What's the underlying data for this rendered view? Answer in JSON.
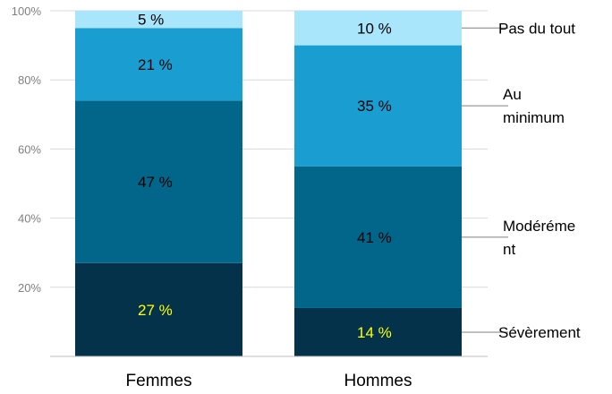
{
  "chart_data": {
    "type": "bar",
    "stacked": true,
    "categories": [
      "Femmes",
      "Hommes"
    ],
    "series": [
      {
        "name": "Sévèrement",
        "values": [
          27,
          14
        ],
        "labels": [
          "27 %",
          "14 %"
        ],
        "color": "#03324a",
        "label_color": "#ffff00"
      },
      {
        "name": "Modérément",
        "values": [
          47,
          41
        ],
        "labels": [
          "47 %",
          "41 %"
        ],
        "color": "#02668b",
        "label_color": "#000000"
      },
      {
        "name": "Au minimum",
        "values": [
          21,
          35
        ],
        "labels": [
          "21 %",
          "35 %"
        ],
        "color": "#1a9ed1",
        "label_color": "#000000"
      },
      {
        "name": "Pas du tout",
        "values": [
          5,
          10
        ],
        "labels": [
          "5 %",
          "10 %"
        ],
        "color": "#a9e6fc",
        "label_color": "#000000"
      }
    ],
    "legend_text": [
      [
        "Sévèrement"
      ],
      [
        "Modéréme",
        "nt"
      ],
      [
        "Au",
        "minimum"
      ],
      [
        "Pas du tout"
      ]
    ],
    "yticks": [
      "20%",
      "40%",
      "60%",
      "80%",
      "100%"
    ],
    "ylim": [
      0,
      100
    ],
    "grid": true,
    "legend": "right"
  }
}
